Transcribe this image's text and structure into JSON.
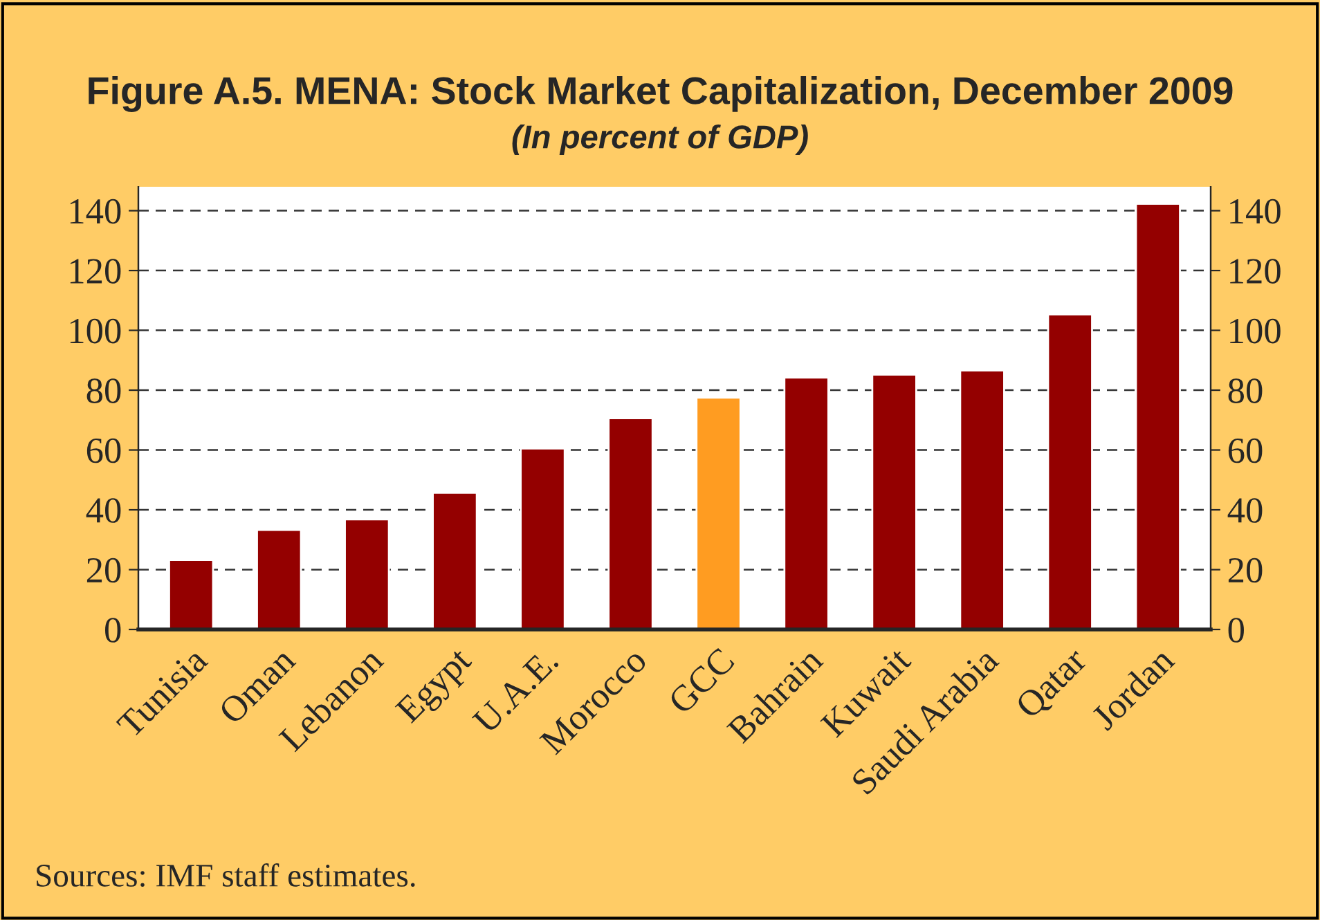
{
  "chart_data": {
    "type": "bar",
    "title": "Figure A.5. MENA: Stock Market Capitalization, December 2009",
    "subtitle": "(In percent of GDP)",
    "categories": [
      "Tunisia",
      "Oman",
      "Lebanon",
      "Egypt",
      "U.A.E.",
      "Morocco",
      "GCC",
      "Bahrain",
      "Kuwait",
      "Saudi Arabia",
      "Qatar",
      "Jordan"
    ],
    "values": [
      23.2,
      33.3,
      36.8,
      45.7,
      60.5,
      70.6,
      77.5,
      84.2,
      85.2,
      86.6,
      105.3,
      142.3
    ],
    "colors": [
      "#940000",
      "#940000",
      "#940000",
      "#940000",
      "#940000",
      "#940000",
      "#ff9c21",
      "#940000",
      "#940000",
      "#940000",
      "#940000",
      "#940000"
    ],
    "ylim": [
      0,
      148
    ],
    "yticks": [
      0,
      20,
      40,
      60,
      80,
      100,
      120,
      140
    ],
    "y2lim": [
      0,
      148
    ],
    "y2ticks": [
      0,
      20,
      40,
      60,
      80,
      100,
      120,
      140
    ],
    "grid": "y",
    "annotations": [
      "Sources: IMF staff estimates."
    ]
  }
}
